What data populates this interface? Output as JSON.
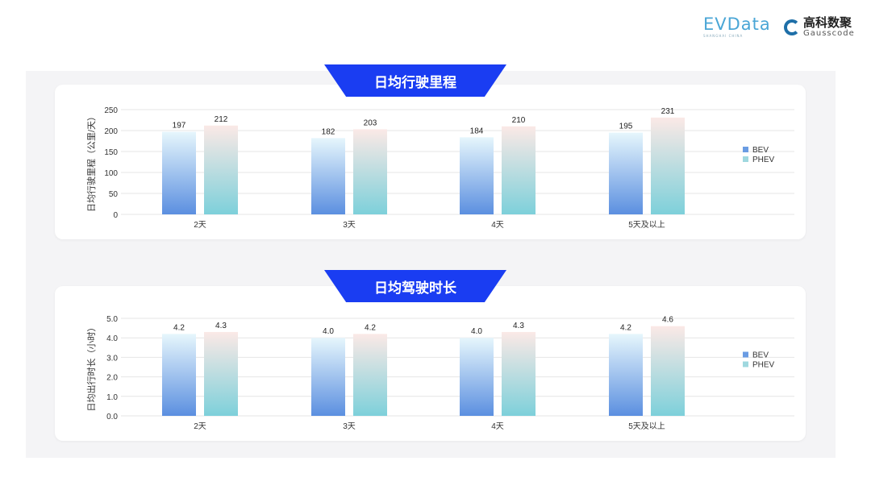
{
  "logos": {
    "evdata": "EVData",
    "evdata_sub": "SHANGHAI CHINA",
    "gauss_cn": "高科数聚",
    "gauss_en": "Gausscode"
  },
  "colors": {
    "banner": "#1a3df2",
    "bev_top": "#e6f6fc",
    "bev_bottom": "#5b8fe0",
    "phev_top": "#fbe9e6",
    "phev_bottom": "#7dd0da"
  },
  "chart_data": [
    {
      "type": "bar",
      "title": "日均行驶里程",
      "ylabel": "日均行驶里程（公里/天）",
      "categories": [
        "2天",
        "3天",
        "4天",
        "5天及以上"
      ],
      "ylim": [
        0,
        250
      ],
      "yticks": [
        "0",
        "50",
        "100",
        "150",
        "200",
        "250"
      ],
      "legend": "right",
      "series": [
        {
          "name": "BEV",
          "values": [
            197,
            182,
            184,
            195
          ],
          "labels": [
            "197",
            "182",
            "184",
            "195"
          ]
        },
        {
          "name": "PHEV",
          "values": [
            212,
            203,
            210,
            231
          ],
          "labels": [
            "212",
            "203",
            "210",
            "231"
          ]
        }
      ]
    },
    {
      "type": "bar",
      "title": "日均驾驶时长",
      "ylabel": "日均出行时长（小时）",
      "categories": [
        "2天",
        "3天",
        "4天",
        "5天及以上"
      ],
      "ylim": [
        0,
        5
      ],
      "yticks": [
        "0.0",
        "1.0",
        "2.0",
        "3.0",
        "4.0",
        "5.0"
      ],
      "legend": "right",
      "series": [
        {
          "name": "BEV",
          "values": [
            4.2,
            4.0,
            4.0,
            4.2
          ],
          "labels": [
            "4.2",
            "4.0",
            "4.0",
            "4.2"
          ]
        },
        {
          "name": "PHEV",
          "values": [
            4.3,
            4.2,
            4.3,
            4.6
          ],
          "labels": [
            "4.3",
            "4.2",
            "4.3",
            "4.6"
          ]
        }
      ]
    }
  ]
}
